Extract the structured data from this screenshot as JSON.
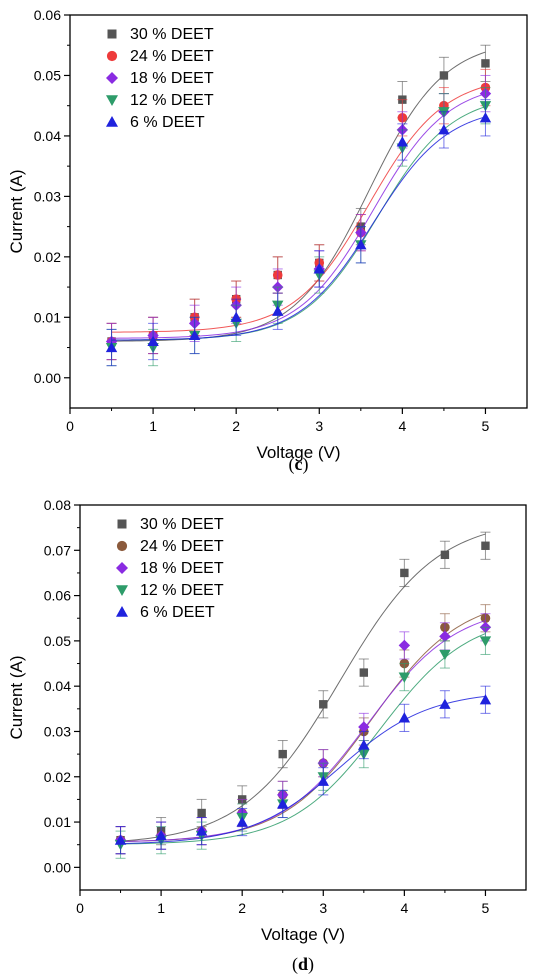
{
  "colors": {
    "s30": "#555555",
    "s24c": "#ee3b3b",
    "s24d": "#8b5a3c",
    "s18": "#8a2be2",
    "s12": "#2e9c6a",
    "s6": "#1f22dd"
  },
  "chart_data": [
    {
      "panel": "(c)",
      "panel_letter": "c",
      "type": "scatter",
      "xlabel": "Voltage (V)",
      "ylabel": "Current (A)",
      "xlim": [
        0,
        5.5
      ],
      "ylim": [
        -0.005,
        0.06
      ],
      "xticks": [
        0,
        1,
        2,
        3,
        4,
        5
      ],
      "yticks": [
        0.0,
        0.01,
        0.02,
        0.03,
        0.04,
        0.05,
        0.06
      ],
      "ytick_labels": [
        "0.00",
        "0.01",
        "0.02",
        "0.03",
        "0.04",
        "0.05",
        "0.06"
      ],
      "legend_position": "top-left",
      "x": [
        0.5,
        1,
        1.5,
        2,
        2.5,
        3,
        3.5,
        4,
        4.5,
        5
      ],
      "fit_curves": "sigmoidal",
      "series": [
        {
          "name": "30 % DEET",
          "marker": "square",
          "color_key": "s30",
          "values": [
            0.006,
            0.007,
            0.01,
            0.013,
            0.017,
            0.019,
            0.025,
            0.046,
            0.05,
            0.052
          ],
          "error": 0.003,
          "fit": {
            "a1": 0.006,
            "a2": 0.056,
            "x0": 3.6,
            "dx": 0.45
          }
        },
        {
          "name": "24 % DEET",
          "marker": "circle",
          "color_key": "s24c",
          "values": [
            0.006,
            0.007,
            0.01,
            0.013,
            0.017,
            0.019,
            0.024,
            0.043,
            0.045,
            0.048
          ],
          "error": 0.003,
          "fit": {
            "a1": 0.0075,
            "a2": 0.05,
            "x0": 3.6,
            "dx": 0.45
          }
        },
        {
          "name": "18 % DEET",
          "marker": "diamond",
          "color_key": "s18",
          "values": [
            0.006,
            0.007,
            0.009,
            0.012,
            0.015,
            0.018,
            0.024,
            0.041,
            0.044,
            0.047
          ],
          "error": 0.003,
          "fit": {
            "a1": 0.0065,
            "a2": 0.049,
            "x0": 3.65,
            "dx": 0.45
          }
        },
        {
          "name": "12 % DEET",
          "marker": "triangle-down",
          "color_key": "s12",
          "values": [
            0.005,
            0.005,
            0.007,
            0.009,
            0.012,
            0.017,
            0.022,
            0.038,
            0.044,
            0.045
          ],
          "error": 0.003,
          "fit": {
            "a1": 0.0062,
            "a2": 0.047,
            "x0": 3.7,
            "dx": 0.45
          }
        },
        {
          "name": "6 % DEET",
          "marker": "triangle-up",
          "color_key": "s6",
          "values": [
            0.005,
            0.006,
            0.007,
            0.01,
            0.011,
            0.018,
            0.022,
            0.039,
            0.041,
            0.043
          ],
          "error": 0.003,
          "fit": {
            "a1": 0.0062,
            "a2": 0.045,
            "x0": 3.65,
            "dx": 0.45
          }
        }
      ]
    },
    {
      "panel": "(d)",
      "panel_letter": "d",
      "type": "scatter",
      "xlabel": "Voltage (V)",
      "ylabel": "Current (A)",
      "xlim": [
        0,
        5.5
      ],
      "ylim": [
        -0.005,
        0.08
      ],
      "xticks": [
        0,
        1,
        2,
        3,
        4,
        5
      ],
      "yticks": [
        0.0,
        0.01,
        0.02,
        0.03,
        0.04,
        0.05,
        0.06,
        0.07,
        0.08
      ],
      "ytick_labels": [
        "0.00",
        "0.01",
        "0.02",
        "0.03",
        "0.04",
        "0.05",
        "0.06",
        "0.07",
        "0.08"
      ],
      "legend_position": "top-left",
      "x": [
        0.5,
        1,
        1.5,
        2,
        2.5,
        3,
        3.5,
        4,
        4.5,
        5
      ],
      "fit_curves": "sigmoidal",
      "series": [
        {
          "name": "30 % DEET",
          "marker": "square",
          "color_key": "s30",
          "values": [
            0.006,
            0.008,
            0.012,
            0.015,
            0.025,
            0.036,
            0.043,
            0.065,
            0.069,
            0.071
          ],
          "error": 0.003,
          "fit": {
            "a1": 0.005,
            "a2": 0.077,
            "x0": 3.2,
            "dx": 0.6
          }
        },
        {
          "name": "24 % DEET",
          "marker": "circle",
          "color_key": "s24d",
          "values": [
            0.006,
            0.007,
            0.008,
            0.012,
            0.016,
            0.023,
            0.03,
            0.045,
            0.053,
            0.055
          ],
          "error": 0.003,
          "fit": {
            "a1": 0.0055,
            "a2": 0.06,
            "x0": 3.6,
            "dx": 0.55
          }
        },
        {
          "name": "18 % DEET",
          "marker": "diamond",
          "color_key": "s18",
          "values": [
            0.006,
            0.007,
            0.008,
            0.012,
            0.016,
            0.023,
            0.031,
            0.049,
            0.051,
            0.053
          ],
          "error": 0.003,
          "fit": {
            "a1": 0.0055,
            "a2": 0.058,
            "x0": 3.55,
            "dx": 0.55
          }
        },
        {
          "name": "12 % DEET",
          "marker": "triangle-down",
          "color_key": "s12",
          "values": [
            0.005,
            0.006,
            0.007,
            0.011,
            0.014,
            0.02,
            0.025,
            0.042,
            0.047,
            0.05
          ],
          "error": 0.003,
          "fit": {
            "a1": 0.005,
            "a2": 0.056,
            "x0": 3.7,
            "dx": 0.55
          }
        },
        {
          "name": "6 % DEET",
          "marker": "triangle-up",
          "color_key": "s6",
          "values": [
            0.006,
            0.007,
            0.008,
            0.01,
            0.014,
            0.019,
            0.027,
            0.033,
            0.036,
            0.037
          ],
          "error": 0.003,
          "fit": {
            "a1": 0.005,
            "a2": 0.039,
            "x0": 3.2,
            "dx": 0.55
          }
        }
      ]
    }
  ]
}
